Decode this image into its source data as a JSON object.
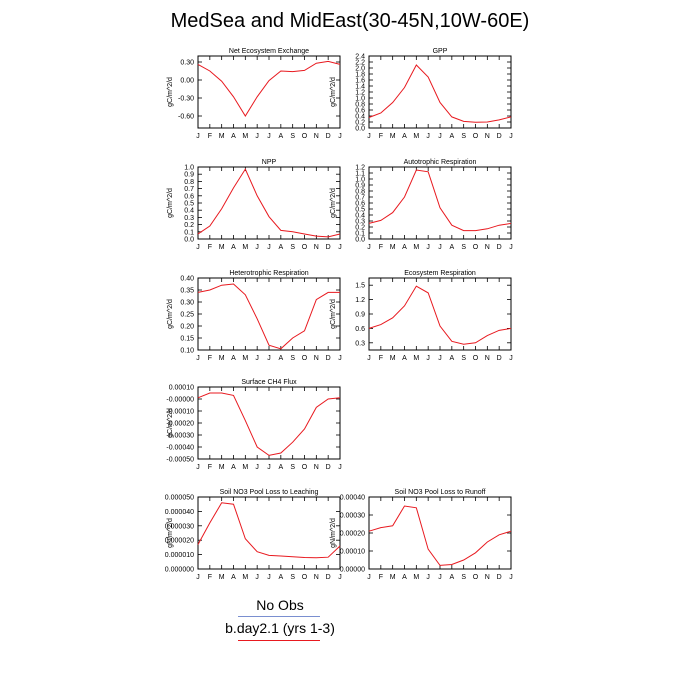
{
  "title": "MedSea and MidEast(30-45N,10W-60E)",
  "colors": {
    "model": "#e8191f",
    "obs": "#7a8fd0"
  },
  "legend": {
    "obs_label": "No Obs",
    "model_label": "b.day2.1 (yrs 1-3)"
  },
  "month_ticks": [
    "J",
    "F",
    "M",
    "A",
    "M",
    "J",
    "J",
    "A",
    "S",
    "O",
    "N",
    "D",
    "J"
  ],
  "chart_data": [
    {
      "type": "line",
      "title": "Net Ecosystem Exchange",
      "ylabel": "gC/m^2/d",
      "ylim": [
        -0.8,
        0.4
      ],
      "yticks": [
        -0.6,
        -0.3,
        0.0,
        0.3
      ],
      "yticklabels": [
        "-0.60",
        "-0.30",
        "0.00",
        "0.30"
      ],
      "series": [
        {
          "values": [
            0.26,
            0.15,
            -0.02,
            -0.28,
            -0.6,
            -0.28,
            -0.01,
            0.15,
            0.14,
            0.16,
            0.28,
            0.31,
            0.26
          ]
        }
      ]
    },
    {
      "type": "line",
      "title": "GPP",
      "ylabel": "gC/m^2/d",
      "ylim": [
        0,
        2.4
      ],
      "yticks": [
        0,
        0.2,
        0.4,
        0.6,
        0.8,
        1.0,
        1.2,
        1.4,
        1.6,
        1.8,
        2.0,
        2.2,
        2.4
      ],
      "yticklabels": [
        "0.0",
        "0.2",
        "0.4",
        "0.6",
        "0.8",
        "1.0",
        "1.2",
        "1.4",
        "1.6",
        "1.8",
        "2.0",
        "2.2",
        "2.4"
      ],
      "series": [
        {
          "values": [
            0.35,
            0.5,
            0.85,
            1.35,
            2.1,
            1.7,
            0.85,
            0.37,
            0.22,
            0.19,
            0.2,
            0.27,
            0.37
          ]
        }
      ]
    },
    {
      "type": "line",
      "title": "NPP",
      "ylabel": "gC/m^2/d",
      "ylim": [
        0,
        1.0
      ],
      "yticks": [
        0,
        0.1,
        0.2,
        0.3,
        0.4,
        0.5,
        0.6,
        0.7,
        0.8,
        0.9,
        1.0
      ],
      "yticklabels": [
        "0.0",
        "0.1",
        "0.2",
        "0.3",
        "0.4",
        "0.5",
        "0.6",
        "0.7",
        "0.8",
        "0.9",
        "1.0"
      ],
      "series": [
        {
          "values": [
            0.07,
            0.18,
            0.42,
            0.71,
            0.97,
            0.6,
            0.31,
            0.12,
            0.1,
            0.07,
            0.04,
            0.03,
            0.07
          ]
        }
      ]
    },
    {
      "type": "line",
      "title": "Autotrophic Respiration",
      "ylabel": "gC/m^2/d",
      "ylim": [
        0,
        1.2
      ],
      "yticks": [
        0,
        0.1,
        0.2,
        0.3,
        0.4,
        0.5,
        0.6,
        0.7,
        0.8,
        0.9,
        1.0,
        1.1,
        1.2
      ],
      "yticklabels": [
        "0.0",
        "0.1",
        "0.2",
        "0.3",
        "0.4",
        "0.5",
        "0.6",
        "0.7",
        "0.8",
        "0.9",
        "1.0",
        "1.1",
        "1.2"
      ],
      "series": [
        {
          "values": [
            0.26,
            0.31,
            0.44,
            0.7,
            1.15,
            1.12,
            0.52,
            0.23,
            0.14,
            0.14,
            0.17,
            0.23,
            0.26
          ]
        }
      ]
    },
    {
      "type": "line",
      "title": "Heterotrophic Respiration",
      "ylabel": "gC/m^2/d",
      "ylim": [
        0.1,
        0.4
      ],
      "yticks": [
        0.1,
        0.15,
        0.2,
        0.25,
        0.3,
        0.35,
        0.4
      ],
      "yticklabels": [
        "0.10",
        "0.15",
        "0.20",
        "0.25",
        "0.30",
        "0.35",
        "0.40"
      ],
      "series": [
        {
          "values": [
            0.34,
            0.35,
            0.37,
            0.375,
            0.33,
            0.23,
            0.12,
            0.105,
            0.15,
            0.18,
            0.31,
            0.34,
            0.34
          ]
        }
      ]
    },
    {
      "type": "line",
      "title": "Ecosystem Respiration",
      "ylabel": "gC/m^2/d",
      "ylim": [
        0.15,
        1.65
      ],
      "yticks": [
        0.3,
        0.6,
        0.9,
        1.2,
        1.5
      ],
      "yticklabels": [
        "0.3",
        "0.6",
        "0.9",
        "1.2",
        "1.5"
      ],
      "series": [
        {
          "values": [
            0.6,
            0.68,
            0.82,
            1.07,
            1.48,
            1.34,
            0.65,
            0.33,
            0.27,
            0.3,
            0.45,
            0.56,
            0.6
          ]
        }
      ]
    },
    {
      "type": "line",
      "title": "Surface CH4 Flux",
      "ylabel": "gC/m^2/d",
      "ylim": [
        -0.0005,
        0.0001
      ],
      "yticks": [
        0.0001,
        0.0,
        -0.0001,
        -0.0002,
        -0.0003,
        -0.0004,
        -0.0005
      ],
      "yticklabels": [
        "0.00010",
        "-0.00000",
        "-0.00010",
        "-0.00020",
        "-0.00030",
        "-0.00040",
        "-0.00050"
      ],
      "series": [
        {
          "values": [
            1e-05,
            5e-05,
            5e-05,
            3e-05,
            -0.00018,
            -0.0004,
            -0.00047,
            -0.00045,
            -0.00036,
            -0.00025,
            -7e-05,
            0.0,
            1e-05
          ]
        }
      ]
    },
    null,
    {
      "type": "line",
      "title": "Soil NO3 Pool Loss to Leaching",
      "ylabel": "gN/m^2/d",
      "ylim": [
        0,
        5e-05
      ],
      "yticks": [
        0,
        1e-05,
        2e-05,
        3e-05,
        4e-05,
        5e-05
      ],
      "yticklabels": [
        "0.000000",
        "0.000010",
        "0.000020",
        "0.000030",
        "0.000040",
        "0.000050"
      ],
      "series": [
        {
          "values": [
            1.7e-05,
            3.2e-05,
            4.6e-05,
            4.5e-05,
            2.1e-05,
            1.2e-05,
            9.5e-06,
            9e-06,
            8.5e-06,
            8e-06,
            7.8e-06,
            8.2e-06,
            1.6e-05
          ]
        }
      ]
    },
    {
      "type": "line",
      "title": "Soil NO3 Pool Loss to Runoff",
      "ylabel": "gN/m^2/d",
      "ylim": [
        0,
        0.0004
      ],
      "yticks": [
        0,
        0.0001,
        0.0002,
        0.0003,
        0.0004
      ],
      "yticklabels": [
        "0.00000",
        "0.00010",
        "0.00020",
        "0.00030",
        "0.00040"
      ],
      "series": [
        {
          "values": [
            0.00021,
            0.00023,
            0.00024,
            0.00035,
            0.00034,
            0.00011,
            2e-05,
            2.5e-05,
            5e-05,
            9e-05,
            0.00015,
            0.00019,
            0.00021
          ]
        }
      ]
    }
  ]
}
